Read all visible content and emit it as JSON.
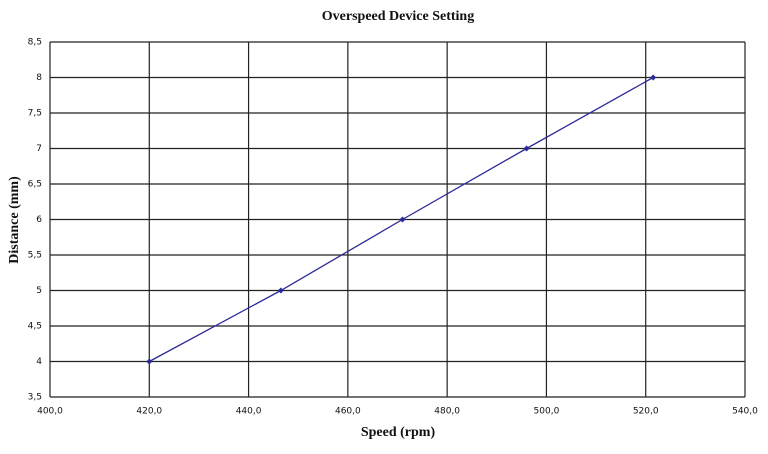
{
  "chart_data": {
    "type": "line",
    "title": "Overspeed Device Setting",
    "x_label": "Speed (rpm)",
    "y_label": "Distance (mm)",
    "x": [
      420,
      446.5,
      471,
      496,
      521.5
    ],
    "series": [
      {
        "name": "Distance",
        "color": "#2a2a9a",
        "values": [
          4,
          5,
          6,
          7,
          8
        ]
      }
    ],
    "xlim": [
      400,
      540
    ],
    "xticks": [
      {
        "value": 400,
        "label": "400,0"
      },
      {
        "value": 420,
        "label": "420,0"
      },
      {
        "value": 440,
        "label": "440,0"
      },
      {
        "value": 460,
        "label": "460,0"
      },
      {
        "value": 480,
        "label": "480,0"
      },
      {
        "value": 500,
        "label": "500,0"
      },
      {
        "value": 520,
        "label": "520,0"
      },
      {
        "value": 540,
        "label": "540,0"
      }
    ],
    "ylim": [
      3.5,
      8.5
    ],
    "yticks": [
      {
        "value": 3.5,
        "label": "3,5"
      },
      4,
      {
        "value": 4.5,
        "label": "4,5"
      },
      5,
      {
        "value": 5.5,
        "label": "5,5"
      },
      6,
      {
        "value": 6.5,
        "label": "6,5"
      },
      7,
      {
        "value": 7.5,
        "label": "7,5"
      },
      8,
      {
        "value": 8.5,
        "label": "8,5"
      }
    ],
    "grid": true
  }
}
